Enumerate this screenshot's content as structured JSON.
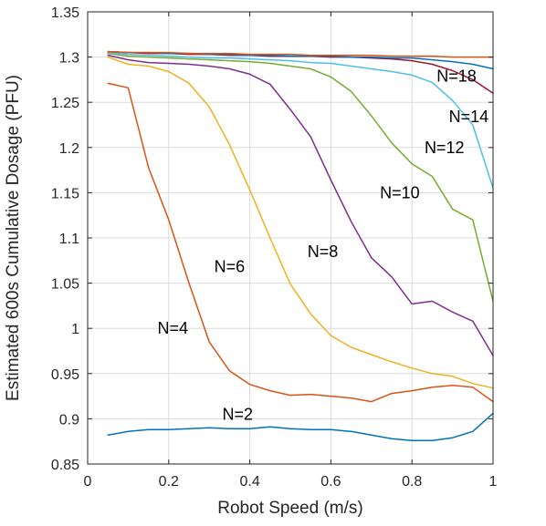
{
  "chart_data": {
    "type": "line",
    "title": "",
    "xlabel": "Robot Speed (m/s)",
    "ylabel": "Estimated 600s Cumulative Dosage (PFU)",
    "xlim": [
      0,
      1
    ],
    "ylim": [
      0.85,
      1.35
    ],
    "grid": true,
    "legend": "none",
    "x_ticks": [
      "0",
      "0.2",
      "0.4",
      "0.6",
      "0.8",
      "1"
    ],
    "y_ticks": [
      "0.85",
      "0.9",
      "0.95",
      "1",
      "1.05",
      "1.1",
      "1.15",
      "1.2",
      "1.25",
      "1.3",
      "1.35"
    ],
    "x": [
      0.05,
      0.1,
      0.15,
      0.2,
      0.25,
      0.3,
      0.35,
      0.4,
      0.45,
      0.5,
      0.55,
      0.6,
      0.65,
      0.7,
      0.75,
      0.8,
      0.85,
      0.9,
      0.95,
      1.0
    ],
    "series": [
      {
        "name": "N=2",
        "color": "#0072bd",
        "label_pos": [
          0.37,
          0.905
        ],
        "values": [
          0.882,
          0.886,
          0.888,
          0.888,
          0.889,
          0.89,
          0.889,
          0.889,
          0.891,
          0.889,
          0.888,
          0.888,
          0.886,
          0.882,
          0.878,
          0.876,
          0.876,
          0.879,
          0.886,
          0.906
        ]
      },
      {
        "name": "N=4",
        "color": "#d95319",
        "label_pos": [
          0.21,
          1.0
        ],
        "values": [
          1.271,
          1.266,
          1.178,
          1.12,
          1.05,
          0.985,
          0.953,
          0.938,
          0.931,
          0.926,
          0.927,
          0.925,
          0.923,
          0.919,
          0.928,
          0.931,
          0.935,
          0.937,
          0.935,
          0.919
        ]
      },
      {
        "name": "N=6",
        "color": "#edb120",
        "label_pos": [
          0.35,
          1.068
        ],
        "values": [
          1.3,
          1.292,
          1.29,
          1.284,
          1.271,
          1.245,
          1.203,
          1.153,
          1.1,
          1.049,
          1.016,
          0.992,
          0.979,
          0.971,
          0.963,
          0.956,
          0.95,
          0.947,
          0.939,
          0.934
        ]
      },
      {
        "name": "N=8",
        "color": "#7e2f8e",
        "label_pos": [
          0.58,
          1.085
        ],
        "values": [
          1.302,
          1.297,
          1.294,
          1.293,
          1.292,
          1.29,
          1.287,
          1.281,
          1.27,
          1.242,
          1.212,
          1.164,
          1.118,
          1.078,
          1.057,
          1.027,
          1.03,
          1.018,
          1.008,
          0.97
        ]
      },
      {
        "name": "N=10",
        "color": "#77ac30",
        "label_pos": [
          0.77,
          1.15
        ],
        "values": [
          1.304,
          1.301,
          1.3,
          1.299,
          1.298,
          1.297,
          1.296,
          1.295,
          1.293,
          1.29,
          1.287,
          1.278,
          1.262,
          1.235,
          1.205,
          1.182,
          1.168,
          1.132,
          1.12,
          1.03
        ]
      },
      {
        "name": "N=12",
        "color": "#4dbeee",
        "label_pos": [
          0.88,
          1.2
        ],
        "values": [
          1.305,
          1.303,
          1.302,
          1.301,
          1.3,
          1.299,
          1.299,
          1.298,
          1.297,
          1.296,
          1.294,
          1.293,
          1.29,
          1.287,
          1.284,
          1.28,
          1.272,
          1.252,
          1.225,
          1.155
        ]
      },
      {
        "name": "N=14",
        "color": "#a2142f",
        "label_pos": [
          0.94,
          1.234
        ],
        "values": [
          1.306,
          1.305,
          1.304,
          1.304,
          1.303,
          1.303,
          1.302,
          1.302,
          1.301,
          1.301,
          1.301,
          1.3,
          1.3,
          1.299,
          1.298,
          1.296,
          1.292,
          1.285,
          1.275,
          1.26
        ]
      },
      {
        "name": "N=18",
        "color": "#0072bd",
        "label_pos": [
          0.91,
          1.279
        ],
        "values": [
          1.306,
          1.305,
          1.305,
          1.304,
          1.304,
          1.303,
          1.303,
          1.302,
          1.302,
          1.301,
          1.301,
          1.301,
          1.3,
          1.3,
          1.299,
          1.299,
          1.297,
          1.295,
          1.292,
          1.287
        ]
      },
      {
        "name": "",
        "color": "#d95319",
        "values": [
          1.306,
          1.305,
          1.305,
          1.305,
          1.304,
          1.304,
          1.304,
          1.303,
          1.303,
          1.303,
          1.302,
          1.302,
          1.302,
          1.302,
          1.301,
          1.301,
          1.301,
          1.3,
          1.3,
          1.3
        ]
      }
    ]
  }
}
